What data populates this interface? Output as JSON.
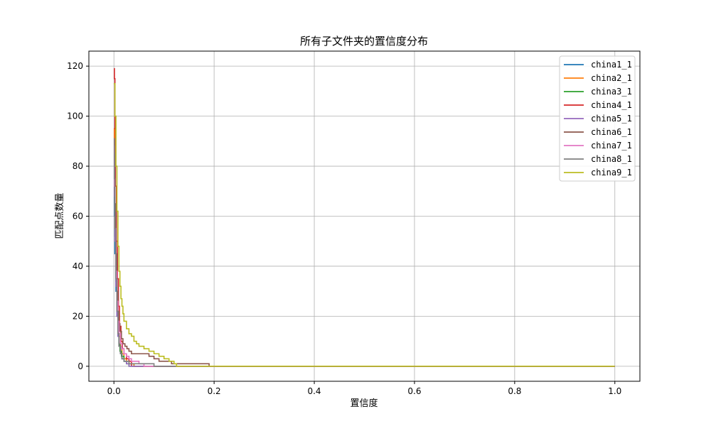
{
  "chart_data": {
    "type": "line",
    "title": "所有子文件夹的置信度分布",
    "xlabel": "置信度",
    "ylabel": "匹配点数量",
    "xlim": [
      -0.05,
      1.05
    ],
    "ylim": [
      -6,
      126
    ],
    "xticks": [
      0.0,
      0.2,
      0.4,
      0.6,
      0.8,
      1.0
    ],
    "xtick_labels": [
      "0.0",
      "0.2",
      "0.4",
      "0.6",
      "0.8",
      "1.0"
    ],
    "yticks": [
      0,
      20,
      40,
      60,
      80,
      100,
      120
    ],
    "ytick_labels": [
      "0",
      "20",
      "40",
      "60",
      "80",
      "100",
      "120"
    ],
    "grid": true,
    "legend_position": "top-right",
    "series": [
      {
        "name": "china1_1",
        "color": "#1f77b4",
        "x": [
          0.0,
          0.001,
          0.002,
          0.004,
          0.006,
          0.008,
          0.01,
          0.013,
          0.016,
          0.02,
          0.03,
          0.04,
          1.0
        ],
        "y": [
          74,
          60,
          45,
          30,
          20,
          12,
          8,
          5,
          3,
          2,
          1,
          0,
          0
        ]
      },
      {
        "name": "china2_1",
        "color": "#ff7f0e",
        "x": [
          0.0,
          0.001,
          0.002,
          0.004,
          0.006,
          0.008,
          0.01,
          0.013,
          0.016,
          0.02,
          0.025,
          0.03,
          0.04,
          1.0
        ],
        "y": [
          95,
          80,
          62,
          42,
          28,
          18,
          12,
          8,
          5,
          3,
          2,
          1,
          0,
          0
        ]
      },
      {
        "name": "china3_1",
        "color": "#2ca02c",
        "x": [
          0.0,
          0.001,
          0.002,
          0.004,
          0.006,
          0.008,
          0.01,
          0.012,
          0.015,
          0.02,
          0.025,
          0.03,
          1.0
        ],
        "y": [
          85,
          70,
          52,
          34,
          22,
          14,
          9,
          6,
          4,
          2,
          1,
          0,
          0
        ]
      },
      {
        "name": "china4_1",
        "color": "#d62728",
        "x": [
          0.0,
          0.001,
          0.002,
          0.003,
          0.005,
          0.007,
          0.009,
          0.011,
          0.014,
          0.017,
          0.02,
          0.025,
          0.03,
          0.035,
          1.0
        ],
        "y": [
          119,
          115,
          95,
          72,
          50,
          35,
          24,
          16,
          10,
          7,
          5,
          3,
          2,
          0,
          0
        ]
      },
      {
        "name": "china5_1",
        "color": "#9467bd",
        "x": [
          0.0,
          0.001,
          0.002,
          0.004,
          0.006,
          0.008,
          0.01,
          0.013,
          0.016,
          0.02,
          0.025,
          0.03,
          1.0
        ],
        "y": [
          82,
          68,
          50,
          32,
          20,
          12,
          8,
          5,
          3,
          2,
          1,
          0,
          0
        ]
      },
      {
        "name": "china6_1",
        "color": "#8c564b",
        "x": [
          0.0,
          0.002,
          0.004,
          0.006,
          0.008,
          0.01,
          0.012,
          0.015,
          0.018,
          0.022,
          0.026,
          0.03,
          0.035,
          0.05,
          0.07,
          0.08,
          0.09,
          0.1,
          0.115,
          0.19,
          0.19,
          1.0
        ],
        "y": [
          85,
          65,
          45,
          30,
          22,
          17,
          14,
          11,
          9,
          8,
          7,
          6,
          5,
          5,
          4,
          3,
          2,
          2,
          1,
          1,
          0,
          0
        ]
      },
      {
        "name": "china7_1",
        "color": "#e377c2",
        "x": [
          0.0,
          0.001,
          0.002,
          0.004,
          0.006,
          0.008,
          0.01,
          0.013,
          0.016,
          0.02,
          0.025,
          0.03,
          0.035,
          0.05,
          0.06,
          1.0
        ],
        "y": [
          88,
          72,
          55,
          38,
          26,
          18,
          13,
          9,
          7,
          5,
          4,
          3,
          2,
          1,
          0,
          0
        ]
      },
      {
        "name": "china8_1",
        "color": "#7f7f7f",
        "x": [
          0.0,
          0.001,
          0.002,
          0.004,
          0.006,
          0.008,
          0.01,
          0.013,
          0.016,
          0.02,
          0.03,
          0.04,
          0.06,
          0.08,
          0.12,
          0.12,
          1.0
        ],
        "y": [
          91,
          75,
          55,
          35,
          22,
          13,
          8,
          5,
          3,
          2,
          1,
          1,
          1,
          0,
          0,
          0,
          0
        ]
      },
      {
        "name": "china9_1",
        "color": "#bcbd22",
        "x": [
          0.0,
          0.002,
          0.004,
          0.006,
          0.008,
          0.01,
          0.012,
          0.014,
          0.016,
          0.018,
          0.02,
          0.025,
          0.03,
          0.035,
          0.04,
          0.045,
          0.05,
          0.06,
          0.07,
          0.08,
          0.09,
          0.1,
          0.11,
          0.12,
          0.125,
          0.125,
          1.0
        ],
        "y": [
          113,
          100,
          80,
          62,
          48,
          38,
          32,
          27,
          24,
          21,
          18,
          15,
          13,
          12,
          10,
          9,
          8,
          7,
          6,
          5,
          4,
          3,
          2,
          1,
          1,
          0,
          0
        ]
      }
    ]
  }
}
